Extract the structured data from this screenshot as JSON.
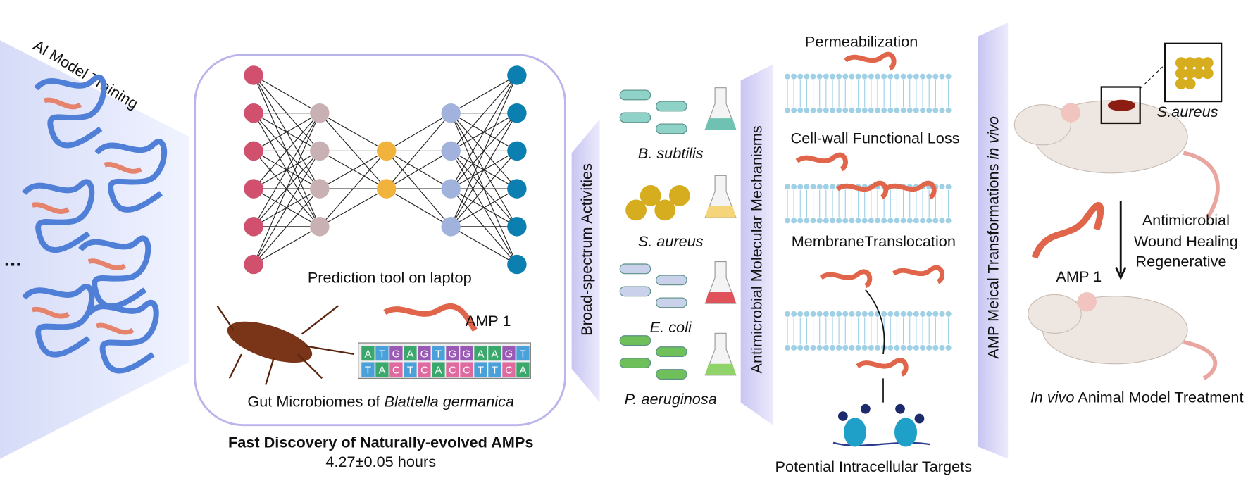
{
  "ai_training": {
    "label": "AI Model Training",
    "ellipsis": "..."
  },
  "discovery": {
    "network_caption": "Prediction tool on laptop",
    "peptide": "AMP 1",
    "dna": {
      "top": [
        "A",
        "T",
        "G",
        "A",
        "G",
        "T",
        "G",
        "G",
        "A",
        "A",
        "G",
        "T"
      ],
      "bottom": [
        "T",
        "A",
        "C",
        "T",
        "C",
        "A",
        "C",
        "C",
        "T",
        "T",
        "C",
        "A"
      ]
    },
    "source_prefix": "Gut Microbiomes of ",
    "source_species": "Blattella germanica",
    "title": "Fast Discovery of Naturally-evolved AMPs",
    "time": "4.27±0.05 hours"
  },
  "activities": {
    "label": "Broad-spectrum Activities",
    "bacteria": [
      "B. subtilis",
      "S. aureus",
      "E. coli",
      "P. aeruginosa"
    ]
  },
  "mechanisms": {
    "label": "Antimicrobial Molecular Mechanisms",
    "items": [
      "Permeabilization",
      "Cell-wall Functional Loss",
      "MembraneTranslocation",
      "Potential Intracellular Targets"
    ]
  },
  "in_vivo": {
    "label_prefix": "AMP Meical Transformations ",
    "label_italic": "in vivo",
    "pathogen": "S.aureus",
    "effects": [
      "Antimicrobial",
      "Wound Healing",
      "Regenerative"
    ],
    "peptide": "AMP 1",
    "caption_italic": "In vivo",
    "caption_rest": " Animal Model Treatment"
  }
}
